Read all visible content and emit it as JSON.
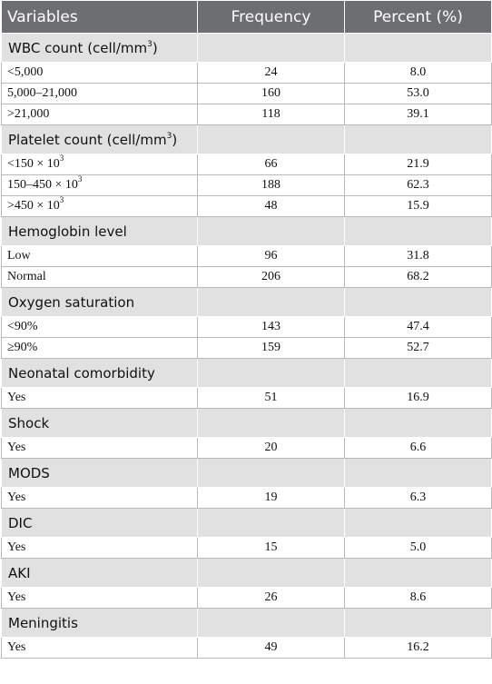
{
  "table": {
    "headers": [
      "Variables",
      "Frequency",
      "Percent (%)"
    ],
    "groups": [
      {
        "title": "WBC count (cell/mm",
        "title_sup": "3",
        "title_after": ")",
        "rows": [
          {
            "label": "<5,000",
            "freq": "24",
            "pct": "8.0"
          },
          {
            "label": "5,000–21,000",
            "freq": "160",
            "pct": "53.0"
          },
          {
            "label": ">21,000",
            "freq": "118",
            "pct": "39.1"
          }
        ]
      },
      {
        "title": "Platelet count (cell/mm",
        "title_sup": "3",
        "title_after": ")",
        "rows": [
          {
            "label": "<150 × 10",
            "label_sup": "3",
            "freq": "66",
            "pct": "21.9"
          },
          {
            "label": "150–450 × 10",
            "label_sup": "3",
            "freq": "188",
            "pct": "62.3"
          },
          {
            "label": ">450 × 10",
            "label_sup": "3",
            "freq": "48",
            "pct": "15.9"
          }
        ]
      },
      {
        "title": "Hemoglobin level",
        "rows": [
          {
            "label": "Low",
            "freq": "96",
            "pct": "31.8"
          },
          {
            "label": "Normal",
            "freq": "206",
            "pct": "68.2"
          }
        ]
      },
      {
        "title": "Oxygen saturation",
        "rows": [
          {
            "label": "<90%",
            "freq": "143",
            "pct": "47.4"
          },
          {
            "label": "≥90%",
            "freq": "159",
            "pct": "52.7"
          }
        ]
      },
      {
        "title": "Neonatal comorbidity",
        "rows": [
          {
            "label": "Yes",
            "freq": "51",
            "pct": "16.9"
          }
        ]
      },
      {
        "title": "Shock",
        "rows": [
          {
            "label": "Yes",
            "freq": "20",
            "pct": "6.6"
          }
        ]
      },
      {
        "title": "MODS",
        "rows": [
          {
            "label": "Yes",
            "freq": "19",
            "pct": "6.3"
          }
        ]
      },
      {
        "title": "DIC",
        "rows": [
          {
            "label": "Yes",
            "freq": "15",
            "pct": "5.0"
          }
        ]
      },
      {
        "title": "AKI",
        "rows": [
          {
            "label": "Yes",
            "freq": "26",
            "pct": "8.6"
          }
        ]
      },
      {
        "title": "Meningitis",
        "rows": [
          {
            "label": "Yes",
            "freq": "49",
            "pct": "16.2"
          }
        ]
      }
    ]
  }
}
